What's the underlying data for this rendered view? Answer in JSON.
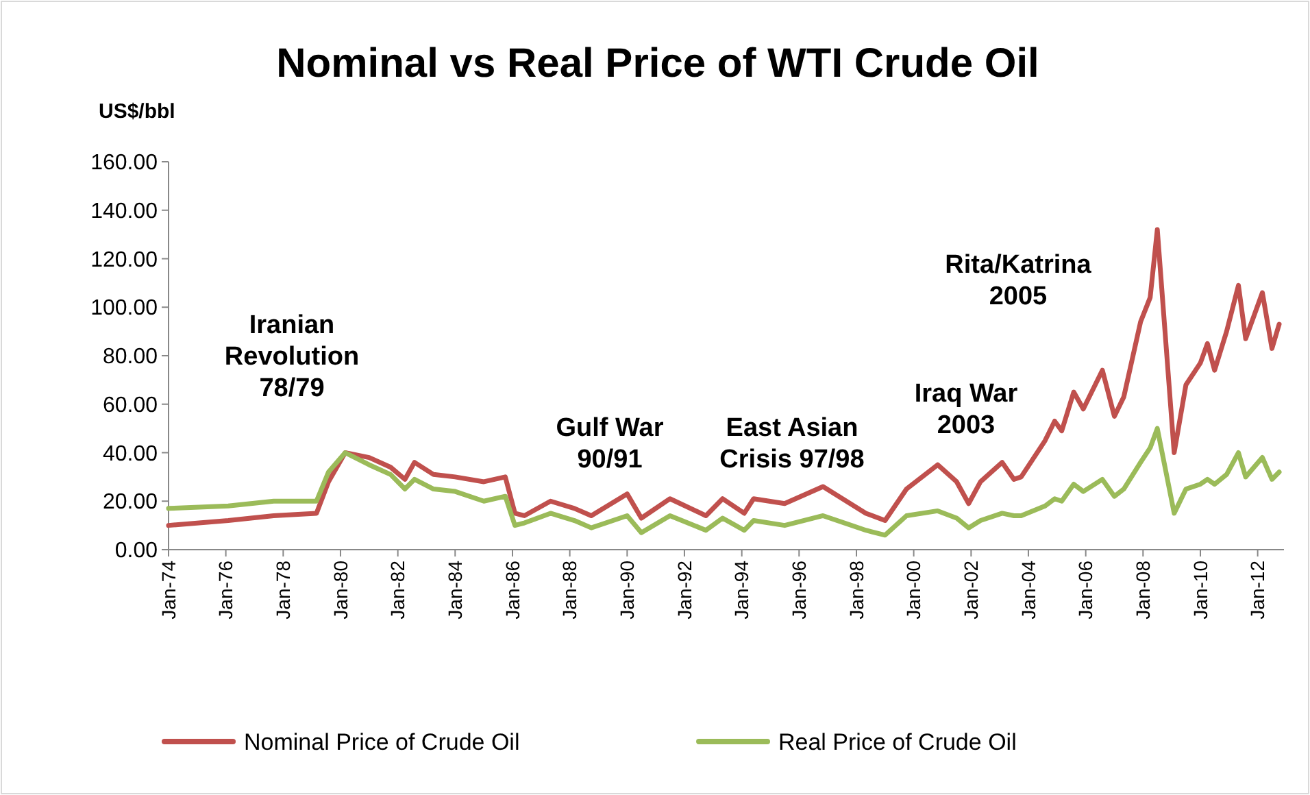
{
  "chart_data": {
    "type": "line",
    "title": "Nominal vs Real Price of WTI Crude Oil",
    "ylabel": "US$/bbl",
    "x": [
      "1974-01",
      "1976-02",
      "1977-09",
      "1979-03",
      "1979-08",
      "1980-03",
      "1981-01",
      "1981-10",
      "1982-04",
      "1982-08",
      "1983-04",
      "1984-01",
      "1985-01",
      "1985-10",
      "1986-02",
      "1986-06",
      "1987-05",
      "1988-03",
      "1988-10",
      "1990-01",
      "1990-07",
      "1991-07",
      "1992-10",
      "1993-05",
      "1994-02",
      "1994-06",
      "1995-07",
      "1996-11",
      "1998-05",
      "1999-01",
      "1999-10",
      "2000-11",
      "2001-07",
      "2001-12",
      "2002-05",
      "2003-02",
      "2003-07",
      "2003-10",
      "2004-08",
      "2004-12",
      "2005-03",
      "2005-08",
      "2005-12",
      "2006-08",
      "2007-01",
      "2007-05",
      "2007-12",
      "2008-04",
      "2008-07",
      "2009-02",
      "2009-07",
      "2010-01",
      "2010-04",
      "2010-07",
      "2010-12",
      "2011-05",
      "2011-08",
      "2012-03",
      "2012-07",
      "2012-10"
    ],
    "series": [
      {
        "name": "Nominal Price of Crude Oil",
        "color": "#c0504d",
        "values": [
          10,
          12,
          14,
          15,
          28,
          40,
          38,
          34,
          29,
          36,
          31,
          30,
          28,
          30,
          15,
          14,
          20,
          17,
          14,
          23,
          13,
          21,
          14,
          21,
          15,
          21,
          19,
          26,
          15,
          12,
          25,
          35,
          28,
          19,
          28,
          36,
          29,
          30,
          45,
          53,
          49,
          65,
          58,
          74,
          55,
          63,
          94,
          104,
          132,
          40,
          68,
          77,
          85,
          74,
          90,
          109,
          87,
          106,
          83,
          93
        ]
      },
      {
        "name": "Real Price of Crude Oil",
        "color": "#9bbb59",
        "values": [
          17,
          18,
          20,
          20,
          32,
          40,
          35,
          31,
          25,
          29,
          25,
          24,
          20,
          22,
          10,
          11,
          15,
          12,
          9,
          14,
          7,
          14,
          8,
          13,
          8,
          12,
          10,
          14,
          8,
          6,
          14,
          16,
          13,
          9,
          12,
          15,
          14,
          14,
          18,
          21,
          20,
          27,
          24,
          29,
          22,
          25,
          36,
          42,
          50,
          15,
          25,
          27,
          29,
          27,
          31,
          40,
          30,
          38,
          29,
          32
        ]
      }
    ],
    "xlim": [
      "1974-01",
      "2012-12"
    ],
    "xticks": [
      {
        "value": "1974-01",
        "label": "Jan-74"
      },
      {
        "value": "1976-01",
        "label": "Jan-76"
      },
      {
        "value": "1978-01",
        "label": "Jan-78"
      },
      {
        "value": "1980-01",
        "label": "Jan-80"
      },
      {
        "value": "1982-01",
        "label": "Jan-82"
      },
      {
        "value": "1984-01",
        "label": "Jan-84"
      },
      {
        "value": "1986-01",
        "label": "Jan-86"
      },
      {
        "value": "1988-01",
        "label": "Jan-88"
      },
      {
        "value": "1990-01",
        "label": "Jan-90"
      },
      {
        "value": "1992-01",
        "label": "Jan-92"
      },
      {
        "value": "1994-01",
        "label": "Jan-94"
      },
      {
        "value": "1996-01",
        "label": "Jan-96"
      },
      {
        "value": "1998-01",
        "label": "Jan-98"
      },
      {
        "value": "2000-01",
        "label": "Jan-00"
      },
      {
        "value": "2002-01",
        "label": "Jan-02"
      },
      {
        "value": "2004-01",
        "label": "Jan-04"
      },
      {
        "value": "2006-01",
        "label": "Jan-06"
      },
      {
        "value": "2008-01",
        "label": "Jan-08"
      },
      {
        "value": "2010-01",
        "label": "Jan-10"
      },
      {
        "value": "2012-01",
        "label": "Jan-12"
      }
    ],
    "ylim": [
      0,
      160
    ],
    "yticks": [
      {
        "value": 0,
        "label": "0.00"
      },
      {
        "value": 20,
        "label": "20.00"
      },
      {
        "value": 40,
        "label": "40.00"
      },
      {
        "value": 60,
        "label": "60.00"
      },
      {
        "value": 80,
        "label": "80.00"
      },
      {
        "value": 100,
        "label": "100.00"
      },
      {
        "value": 120,
        "label": "120.00"
      },
      {
        "value": 140,
        "label": "140.00"
      },
      {
        "value": 160,
        "label": "160.00"
      }
    ],
    "annotations": [
      "Iranian\nRevolution\n78/79",
      "Gulf War\n90/91",
      "East Asian\nCrisis 97/98",
      "Iraq War\n2003",
      "Rita/Katrina\n2005"
    ],
    "grid": false,
    "legend": "bottom",
    "marker": "none",
    "line_style": "solid"
  }
}
